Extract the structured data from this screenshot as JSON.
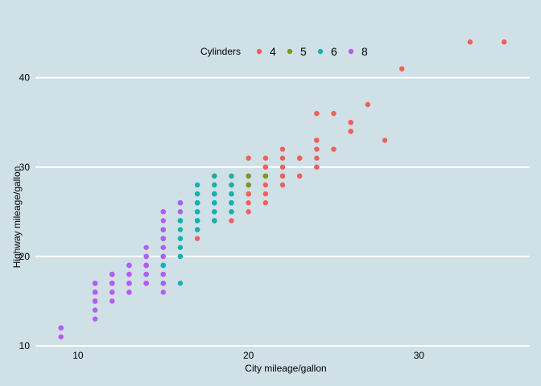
{
  "chart_data": {
    "type": "scatter",
    "xlabel": "City mileage/gallon",
    "ylabel": "Highway mileage/gallon",
    "xlim": [
      7.5,
      36.5
    ],
    "ylim": [
      10,
      46
    ],
    "x_ticks": [
      10,
      20,
      30
    ],
    "y_ticks": [
      10,
      20,
      30,
      40
    ],
    "grid": "horizontal major lines",
    "legend": {
      "title": "Cylinders",
      "placement": "top"
    },
    "series": [
      {
        "name": "4",
        "color": "#f0605b",
        "points": [
          [
            18,
            29
          ],
          [
            21,
            29
          ],
          [
            20,
            31
          ],
          [
            21,
            30
          ],
          [
            18,
            26
          ],
          [
            18,
            29
          ],
          [
            18,
            27
          ],
          [
            20,
            26
          ],
          [
            19,
            25
          ],
          [
            19,
            28
          ],
          [
            20,
            27
          ],
          [
            21,
            29
          ],
          [
            22,
            29
          ],
          [
            21,
            28
          ],
          [
            21,
            31
          ],
          [
            20,
            29
          ],
          [
            20,
            28
          ],
          [
            21,
            27
          ],
          [
            22,
            30
          ],
          [
            21,
            29
          ],
          [
            21,
            30
          ],
          [
            22,
            31
          ],
          [
            20,
            28
          ],
          [
            21,
            29
          ],
          [
            19,
            27
          ],
          [
            19,
            29
          ],
          [
            20,
            29
          ],
          [
            22,
            29
          ],
          [
            23,
            31
          ],
          [
            23,
            29
          ],
          [
            24,
            30
          ],
          [
            24,
            32
          ],
          [
            25,
            32
          ],
          [
            24,
            33
          ],
          [
            24,
            33
          ],
          [
            24,
            36
          ],
          [
            26,
            35
          ],
          [
            26,
            34
          ],
          [
            26,
            34
          ],
          [
            28,
            33
          ],
          [
            27,
            37
          ],
          [
            29,
            41
          ],
          [
            33,
            44
          ],
          [
            35,
            44
          ],
          [
            24,
            30
          ],
          [
            23,
            29
          ],
          [
            21,
            26
          ],
          [
            19,
            26
          ],
          [
            18,
            24
          ],
          [
            19,
            26
          ],
          [
            19,
            24
          ],
          [
            18,
            24
          ],
          [
            20,
            27
          ],
          [
            20,
            25
          ],
          [
            20,
            28
          ],
          [
            17,
            22
          ],
          [
            16,
            20
          ],
          [
            15,
            20
          ],
          [
            16,
            20
          ],
          [
            19,
            28
          ],
          [
            22,
            29
          ],
          [
            20,
            27
          ],
          [
            22,
            32
          ],
          [
            21,
            30
          ],
          [
            19,
            26
          ],
          [
            23,
            31
          ],
          [
            25,
            36
          ],
          [
            24,
            31
          ],
          [
            18,
            27
          ],
          [
            22,
            28
          ],
          [
            26,
            35
          ]
        ]
      },
      {
        "name": "5",
        "color": "#7a9a1e",
        "points": [
          [
            20,
            28
          ],
          [
            20,
            29
          ],
          [
            21,
            29
          ],
          [
            21,
            29
          ]
        ]
      },
      {
        "name": "6",
        "color": "#14b1b1",
        "points": [
          [
            16,
            26
          ],
          [
            17,
            25
          ],
          [
            16,
            26
          ],
          [
            18,
            26
          ],
          [
            17,
            26
          ],
          [
            17,
            26
          ],
          [
            18,
            27
          ],
          [
            16,
            25
          ],
          [
            17,
            24
          ],
          [
            16,
            23
          ],
          [
            15,
            22
          ],
          [
            14,
            20
          ],
          [
            15,
            19
          ],
          [
            14,
            19
          ],
          [
            15,
            19
          ],
          [
            15,
            20
          ],
          [
            15,
            18
          ],
          [
            16,
            20
          ],
          [
            15,
            17
          ],
          [
            14,
            17
          ],
          [
            16,
            24
          ],
          [
            17,
            26
          ],
          [
            18,
            26
          ],
          [
            17,
            26
          ],
          [
            18,
            26
          ],
          [
            17,
            25
          ],
          [
            16,
            22
          ],
          [
            15,
            22
          ],
          [
            17,
            24
          ],
          [
            18,
            25
          ],
          [
            18,
            26
          ],
          [
            19,
            25
          ],
          [
            19,
            27
          ],
          [
            19,
            26
          ],
          [
            18,
            26
          ],
          [
            17,
            28
          ],
          [
            16,
            26
          ],
          [
            17,
            26
          ],
          [
            17,
            25
          ],
          [
            18,
            24
          ],
          [
            18,
            25
          ],
          [
            18,
            28
          ],
          [
            18,
            26
          ],
          [
            19,
            29
          ],
          [
            19,
            26
          ],
          [
            19,
            27
          ],
          [
            17,
            27
          ],
          [
            17,
            24
          ],
          [
            17,
            24
          ],
          [
            17,
            23
          ],
          [
            16,
            24
          ],
          [
            15,
            23
          ],
          [
            15,
            21
          ],
          [
            14,
            20
          ],
          [
            15,
            17
          ],
          [
            16,
            17
          ],
          [
            15,
            19
          ],
          [
            15,
            18
          ],
          [
            15,
            19
          ],
          [
            18,
            27
          ],
          [
            16,
            24
          ],
          [
            17,
            27
          ],
          [
            18,
            29
          ],
          [
            19,
            28
          ],
          [
            15,
            25
          ],
          [
            15,
            23
          ],
          [
            14,
            17
          ],
          [
            13,
            19
          ],
          [
            14,
            19
          ],
          [
            13,
            19
          ],
          [
            14,
            18
          ],
          [
            15,
            22
          ],
          [
            16,
            21
          ],
          [
            16,
            22
          ],
          [
            15,
            23
          ],
          [
            16,
            26
          ],
          [
            17,
            23
          ],
          [
            18,
            26
          ],
          [
            19,
            26
          ]
        ]
      },
      {
        "name": "8",
        "color": "#b55cf6",
        "points": [
          [
            15,
            25
          ],
          [
            16,
            26
          ],
          [
            15,
            25
          ],
          [
            16,
            25
          ],
          [
            15,
            24
          ],
          [
            15,
            23
          ],
          [
            14,
            21
          ],
          [
            15,
            22
          ],
          [
            15,
            21
          ],
          [
            14,
            19
          ],
          [
            14,
            20
          ],
          [
            14,
            17
          ],
          [
            15,
            20
          ],
          [
            14,
            19
          ],
          [
            15,
            18
          ],
          [
            14,
            17
          ],
          [
            14,
            17
          ],
          [
            13,
            17
          ],
          [
            13,
            17
          ],
          [
            13,
            19
          ],
          [
            13,
            17
          ],
          [
            13,
            18
          ],
          [
            12,
            17
          ],
          [
            12,
            16
          ],
          [
            12,
            18
          ],
          [
            12,
            17
          ],
          [
            12,
            17
          ],
          [
            11,
            17
          ],
          [
            11,
            17
          ],
          [
            11,
            17
          ],
          [
            11,
            16
          ],
          [
            11,
            15
          ],
          [
            11,
            15
          ],
          [
            11,
            14
          ],
          [
            11,
            13
          ],
          [
            11,
            15
          ],
          [
            11,
            16
          ],
          [
            11,
            16
          ],
          [
            11,
            17
          ],
          [
            12,
            17
          ],
          [
            13,
            16
          ],
          [
            13,
            17
          ],
          [
            13,
            17
          ],
          [
            14,
            18
          ],
          [
            14,
            17
          ],
          [
            13,
            17
          ],
          [
            13,
            16
          ],
          [
            13,
            17
          ],
          [
            12,
            15
          ],
          [
            12,
            16
          ],
          [
            11,
            15
          ],
          [
            11,
            16
          ],
          [
            12,
            18
          ],
          [
            12,
            18
          ],
          [
            13,
            17
          ],
          [
            13,
            16
          ],
          [
            13,
            18
          ],
          [
            14,
            19
          ],
          [
            14,
            20
          ],
          [
            14,
            18
          ],
          [
            15,
            16
          ],
          [
            15,
            17
          ],
          [
            11,
            17
          ],
          [
            11,
            16
          ],
          [
            12,
            17
          ],
          [
            13,
            17
          ],
          [
            13,
            18
          ],
          [
            13,
            19
          ],
          [
            14,
            19
          ],
          [
            14,
            17
          ],
          [
            9,
            12
          ],
          [
            9,
            12
          ],
          [
            9,
            11
          ],
          [
            9,
            12
          ],
          [
            11,
            15
          ],
          [
            11,
            16
          ],
          [
            12,
            16
          ],
          [
            12,
            17
          ],
          [
            13,
            17
          ],
          [
            14,
            17
          ],
          [
            12,
            17
          ],
          [
            12,
            18
          ],
          [
            12,
            17
          ]
        ]
      }
    ]
  }
}
